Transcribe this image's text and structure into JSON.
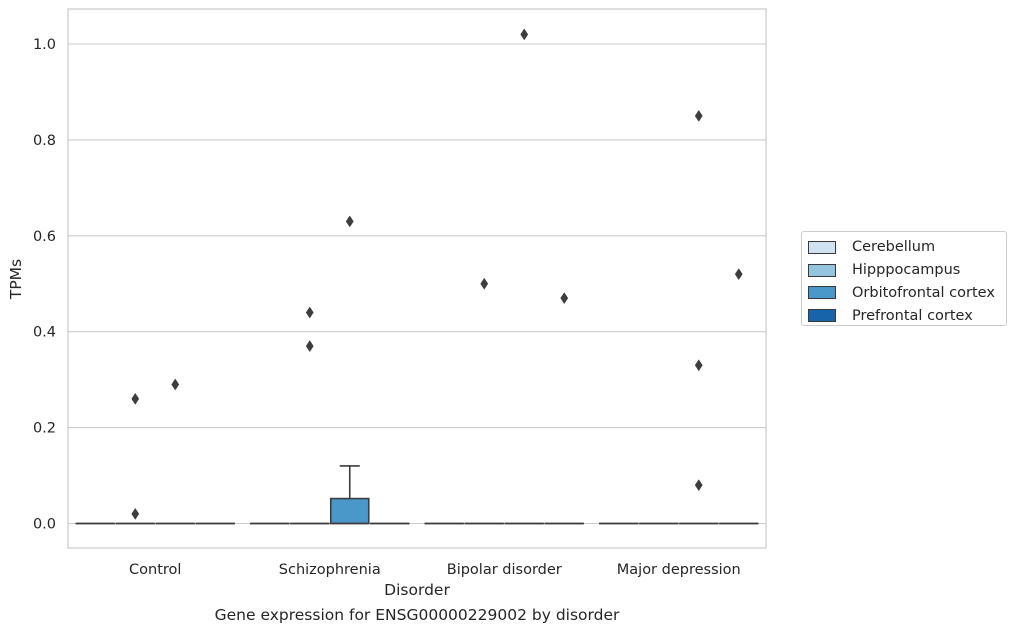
{
  "chart_data": {
    "type": "boxplot",
    "caption": "Gene expression for ENSG00000229002 by disorder",
    "xlabel": "Disorder",
    "ylabel": "TPMs",
    "ylim": [
      -0.05,
      1.07
    ],
    "yticks": [
      0.0,
      0.2,
      0.4,
      0.6,
      0.8,
      1.0
    ],
    "ytick_labels": [
      "0.0",
      "0.2",
      "0.4",
      "0.6",
      "0.8",
      "1.0"
    ],
    "grid": "horizontal",
    "legend_position": "right",
    "categories": [
      "Control",
      "Schizophrenia",
      "Bipolar disorder",
      "Major depression"
    ],
    "series": [
      {
        "name": "Cerebellum",
        "color": "#d0e1f2",
        "boxes": [
          {
            "q1": 0,
            "median": 0,
            "q3": 0,
            "whisker_low": 0,
            "whisker_high": 0,
            "outliers": []
          },
          {
            "q1": 0,
            "median": 0,
            "q3": 0,
            "whisker_low": 0,
            "whisker_high": 0,
            "outliers": []
          },
          {
            "q1": 0,
            "median": 0,
            "q3": 0,
            "whisker_low": 0,
            "whisker_high": 0,
            "outliers": []
          },
          {
            "q1": 0,
            "median": 0,
            "q3": 0,
            "whisker_low": 0,
            "whisker_high": 0,
            "outliers": []
          }
        ]
      },
      {
        "name": "Hipppocampus",
        "color": "#94c4df",
        "boxes": [
          {
            "q1": 0,
            "median": 0,
            "q3": 0,
            "whisker_low": 0,
            "whisker_high": 0,
            "outliers": [
              0.02,
              0.26
            ]
          },
          {
            "q1": 0,
            "median": 0,
            "q3": 0,
            "whisker_low": 0,
            "whisker_high": 0,
            "outliers": [
              0.37,
              0.44
            ]
          },
          {
            "q1": 0,
            "median": 0,
            "q3": 0,
            "whisker_low": 0,
            "whisker_high": 0,
            "outliers": [
              0.5
            ]
          },
          {
            "q1": 0,
            "median": 0,
            "q3": 0,
            "whisker_low": 0,
            "whisker_high": 0,
            "outliers": []
          }
        ]
      },
      {
        "name": "Orbitofrontal cortex",
        "color": "#4a98c9",
        "boxes": [
          {
            "q1": 0,
            "median": 0,
            "q3": 0,
            "whisker_low": 0,
            "whisker_high": 0,
            "outliers": [
              0.29
            ]
          },
          {
            "q1": 0,
            "median": 0,
            "q3": 0.052,
            "whisker_low": 0,
            "whisker_high": 0.12,
            "outliers": [
              0.63
            ]
          },
          {
            "q1": 0,
            "median": 0,
            "q3": 0,
            "whisker_low": 0,
            "whisker_high": 0,
            "outliers": [
              1.02
            ]
          },
          {
            "q1": 0,
            "median": 0,
            "q3": 0,
            "whisker_low": 0,
            "whisker_high": 0,
            "outliers": [
              0.08,
              0.33,
              0.85
            ]
          }
        ]
      },
      {
        "name": "Prefrontal cortex",
        "color": "#1764ab",
        "boxes": [
          {
            "q1": 0,
            "median": 0,
            "q3": 0,
            "whisker_low": 0,
            "whisker_high": 0,
            "outliers": []
          },
          {
            "q1": 0,
            "median": 0,
            "q3": 0,
            "whisker_low": 0,
            "whisker_high": 0,
            "outliers": []
          },
          {
            "q1": 0,
            "median": 0,
            "q3": 0,
            "whisker_low": 0,
            "whisker_high": 0,
            "outliers": [
              0.47
            ]
          },
          {
            "q1": 0,
            "median": 0,
            "q3": 0,
            "whisker_low": 0,
            "whisker_high": 0,
            "outliers": [
              0.52
            ]
          }
        ]
      }
    ]
  }
}
